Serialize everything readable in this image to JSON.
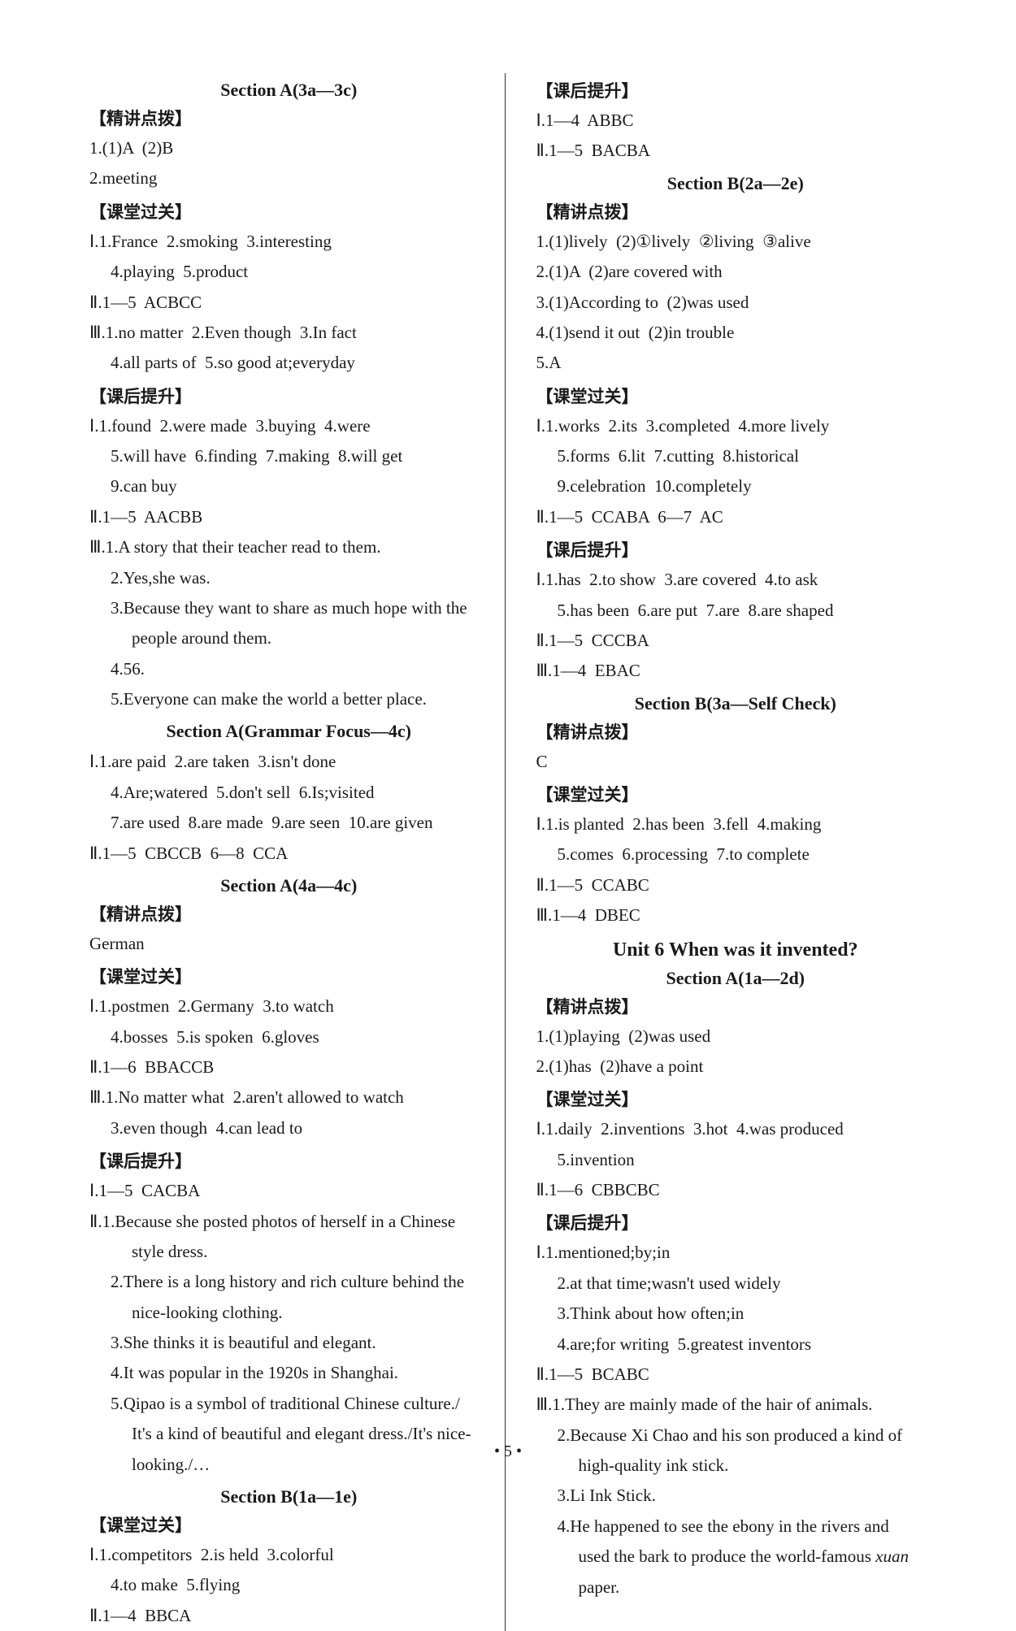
{
  "left": {
    "s1_title": "Section A(3a—3c)",
    "h_jjdb1": "【精讲点拨】",
    "l1_1": "1.(1)A  (2)B",
    "l1_2": "2.meeting",
    "h_ktgg1": "【课堂过关】",
    "l2_1": "Ⅰ.1.France  2.smoking  3.interesting",
    "l2_2": "4.playing  5.product",
    "l2_3": "Ⅱ.1—5  ACBCC",
    "l2_4": "Ⅲ.1.no matter  2.Even though  3.In fact",
    "l2_5": "4.all parts of  5.so good at;everyday",
    "h_khts1": "【课后提升】",
    "l3_1": "Ⅰ.1.found  2.were made  3.buying  4.were",
    "l3_2": "5.will have  6.finding  7.making  8.will get",
    "l3_3": "9.can buy",
    "l3_4": "Ⅱ.1—5  AACBB",
    "l3_5": "Ⅲ.1.A story that their teacher read to them.",
    "l3_6": "2.Yes,she was.",
    "l3_7": "3.Because they want to share as much hope with the",
    "l3_7b": "people around them.",
    "l3_8": "4.56.",
    "l3_9": "5.Everyone can make the world a better place.",
    "s2_title": "Section A(Grammar Focus—4c)",
    "l4_1": "Ⅰ.1.are paid  2.are taken  3.isn't done",
    "l4_2": "4.Are;watered  5.don't sell  6.Is;visited",
    "l4_3": "7.are used  8.are made  9.are seen  10.are given",
    "l4_4": "Ⅱ.1—5  CBCCB  6—8  CCA",
    "s3_title": "Section A(4a—4c)",
    "h_jjdb2": "【精讲点拨】",
    "l5_0": "German",
    "h_ktgg2": "【课堂过关】",
    "l5_1": "Ⅰ.1.postmen  2.Germany  3.to watch",
    "l5_2": "4.bosses  5.is spoken  6.gloves",
    "l5_3": "Ⅱ.1—6  BBACCB",
    "l5_4": "Ⅲ.1.No matter what  2.aren't allowed to watch",
    "l5_5": "3.even though  4.can lead to",
    "h_khts2": "【课后提升】",
    "l6_1": "Ⅰ.1—5  CACBA",
    "l6_2": "Ⅱ.1.Because she posted photos of herself in a Chinese",
    "l6_2b": "style dress.",
    "l6_3": "2.There is a long history and rich culture behind the",
    "l6_3b": "nice-looking clothing.",
    "l6_4": "3.She thinks it is beautiful and elegant.",
    "l6_5": "4.It was popular in the 1920s in Shanghai.",
    "l6_6": "5.Qipao is a symbol of traditional Chinese culture./",
    "l6_6b": "It's a kind of beautiful and elegant dress./It's nice-",
    "l6_6c": "looking./…",
    "s4_title": "Section B(1a—1e)",
    "h_ktgg3": "【课堂过关】",
    "l7_1": "Ⅰ.1.competitors  2.is held  3.colorful",
    "l7_2": "4.to make  5.flying",
    "l7_3": "Ⅱ.1—4  BBCA"
  },
  "right": {
    "h_khts1": "【课后提升】",
    "r1_1": "Ⅰ.1—4  ABBC",
    "r1_2": "Ⅱ.1—5  BACBA",
    "s1_title": "Section B(2a—2e)",
    "h_jjdb1": "【精讲点拨】",
    "r2_1": "1.(1)lively  (2)①lively  ②living  ③alive",
    "r2_2": "2.(1)A  (2)are covered with",
    "r2_3": "3.(1)According to  (2)was used",
    "r2_4": "4.(1)send it out  (2)in trouble",
    "r2_5": "5.A",
    "h_ktgg1": "【课堂过关】",
    "r3_1": "Ⅰ.1.works  2.its  3.completed  4.more lively",
    "r3_2": "5.forms  6.lit  7.cutting  8.historical",
    "r3_3": "9.celebration  10.completely",
    "r3_4": "Ⅱ.1—5  CCABA  6—7  AC",
    "h_khts2": "【课后提升】",
    "r4_1": "Ⅰ.1.has  2.to show  3.are covered  4.to ask",
    "r4_2": "5.has been  6.are put  7.are  8.are shaped",
    "r4_3": "Ⅱ.1—5  CCCBA",
    "r4_4": "Ⅲ.1—4  EBAC",
    "s2_title": "Section B(3a—Self Check)",
    "h_jjdb2": "【精讲点拨】",
    "r5_1": "C",
    "h_ktgg2": "【课堂过关】",
    "r5_2": "Ⅰ.1.is planted  2.has been  3.fell  4.making",
    "r5_3": "5.comes  6.processing  7.to complete",
    "r5_4": "Ⅱ.1—5  CCABC",
    "r5_5": "Ⅲ.1—4  DBEC",
    "unit_title": "Unit 6  When was it invented?",
    "s3_title": "Section A(1a—2d)",
    "h_jjdb3": "【精讲点拨】",
    "r6_1": "1.(1)playing  (2)was used",
    "r6_2": "2.(1)has  (2)have a point",
    "h_ktgg3": "【课堂过关】",
    "r7_1": "Ⅰ.1.daily  2.inventions  3.hot  4.was produced",
    "r7_2": "5.invention",
    "r7_3": "Ⅱ.1—6  CBBCBC",
    "h_khts3": "【课后提升】",
    "r8_1": "Ⅰ.1.mentioned;by;in",
    "r8_2": "2.at that time;wasn't used widely",
    "r8_3": "3.Think about how often;in",
    "r8_4": "4.are;for writing  5.greatest inventors",
    "r8_5": "Ⅱ.1—5  BCABC",
    "r8_6": "Ⅲ.1.They are mainly made of the hair of animals.",
    "r8_7": "2.Because Xi Chao and his son produced a kind of",
    "r8_7b": "high-quality ink stick.",
    "r8_8": "3.Li Ink Stick.",
    "r8_9": "4.He happened to see the ebony in the rivers and",
    "r8_9b": "used the bark to produce the world-famous ",
    "r8_9c": "xuan",
    "r8_9d": "paper."
  },
  "page_number": "• 5 •"
}
